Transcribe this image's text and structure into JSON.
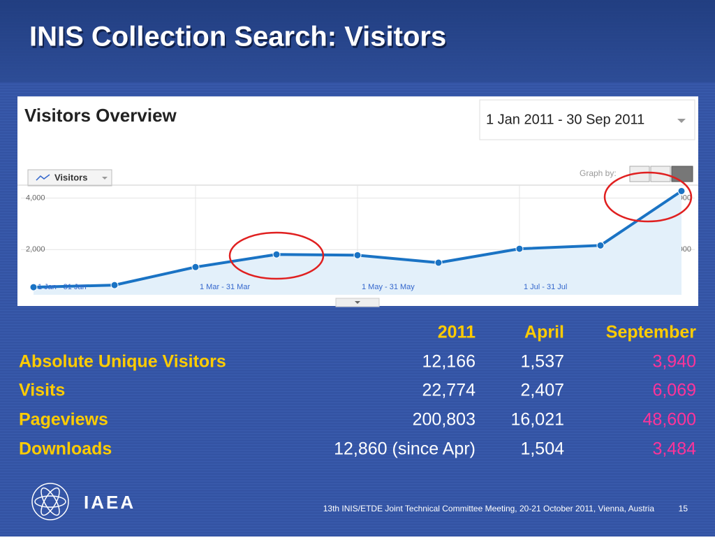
{
  "title": "INIS Collection Search: Visitors",
  "chart_data": {
    "type": "line",
    "title": "Visitors Overview",
    "date_range": "1 Jan 2011 - 30 Sep 2011",
    "metric_button": "Visitors",
    "graph_by": "Graph by:",
    "categories": [
      "1 Jan - 31 Jan",
      null,
      "1 Mar - 31 Mar",
      null,
      "1 May - 31 May",
      null,
      "1 Jul - 31 Jul",
      null,
      null
    ],
    "values": [
      540,
      620,
      1320,
      1810,
      1780,
      1490,
      2030,
      2160,
      4270
    ],
    "color": "#1a73c4",
    "ylim": [
      0,
      4500
    ],
    "yticks": [
      {
        "value": 2000,
        "label": "2,000"
      },
      {
        "value": 4000,
        "label": "4,000"
      }
    ],
    "grid": true
  },
  "table": {
    "header": [
      "2011",
      "April",
      "September"
    ],
    "rows": [
      [
        "Absolute Unique Visitors",
        "12,166",
        "1,537",
        "3,940"
      ],
      [
        "Visits",
        "22,774",
        "2,407",
        "6,069"
      ],
      [
        "Pageviews",
        "200,803",
        "16,021",
        "48,600"
      ],
      [
        "Downloads",
        "12,860 (since Apr)",
        "1,504",
        "3,484"
      ]
    ]
  },
  "footer": {
    "logo": "IAEA",
    "text": "13th INIS/ETDE Joint Technical Committee Meeting, 20-21 October 2011, Vienna, Austria",
    "page": "15"
  }
}
